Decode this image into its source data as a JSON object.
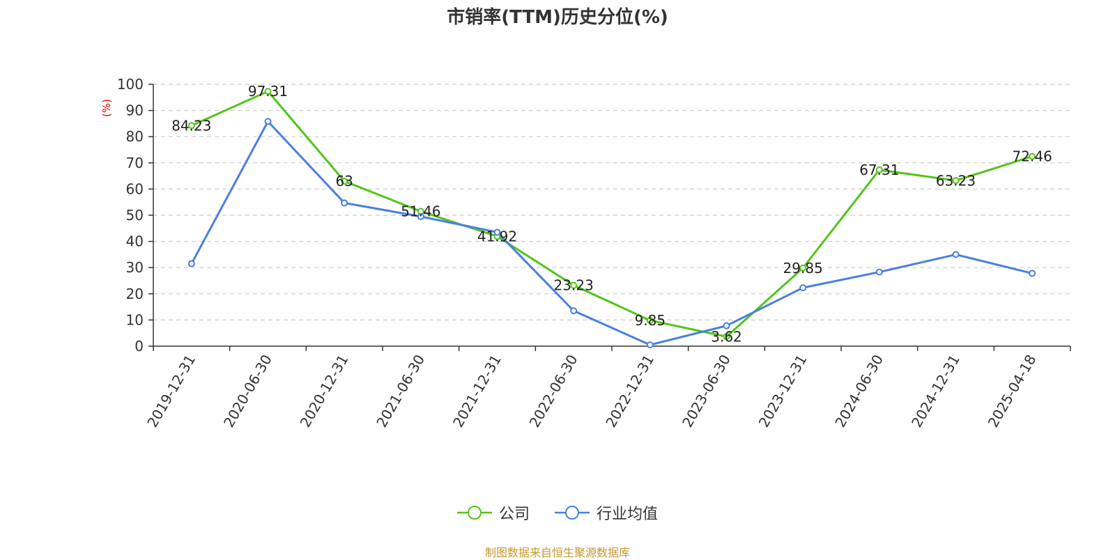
{
  "title": "市销率(TTM)历史分位(%)",
  "source_text": "制图数据来自恒生聚源数据库",
  "colors": {
    "company": "#52c41a",
    "industry": "#4a7fdf",
    "source": "#c8962a",
    "unit": "#e00000",
    "grid": "#cccccc"
  },
  "chart_data": {
    "type": "line",
    "title": "市销率(TTM)历史分位(%)",
    "ylabel": "(%)",
    "xlabel": "",
    "ylim": [
      0,
      100
    ],
    "yticks": [
      0,
      10,
      20,
      30,
      40,
      50,
      60,
      70,
      80,
      90,
      100
    ],
    "grid": "horizontal dashed",
    "legend_position": "bottom-center",
    "categories": [
      "2019-12-31",
      "2020-06-30",
      "2020-12-31",
      "2021-06-30",
      "2021-12-31",
      "2022-06-30",
      "2022-12-31",
      "2023-06-30",
      "2023-12-31",
      "2024-06-30",
      "2024-12-31",
      "2025-04-18"
    ],
    "series": [
      {
        "name": "公司",
        "color": "#52c41a",
        "values": [
          84.23,
          97.31,
          63,
          51.46,
          41.92,
          23.23,
          9.85,
          3.62,
          29.85,
          67.31,
          63.23,
          72.46
        ],
        "labels": [
          "84.23",
          "97.31",
          "63",
          "51.46",
          "41.92",
          "23.23",
          "9.85",
          "3.62",
          "29.85",
          "67.31",
          "63.23",
          "72.46"
        ]
      },
      {
        "name": "行业均值",
        "color": "#4a7fdf",
        "values": [
          31.5,
          85.8,
          54.7,
          49.5,
          43.5,
          13.5,
          0.5,
          7.8,
          22.3,
          28.3,
          35,
          27.8
        ]
      }
    ]
  }
}
